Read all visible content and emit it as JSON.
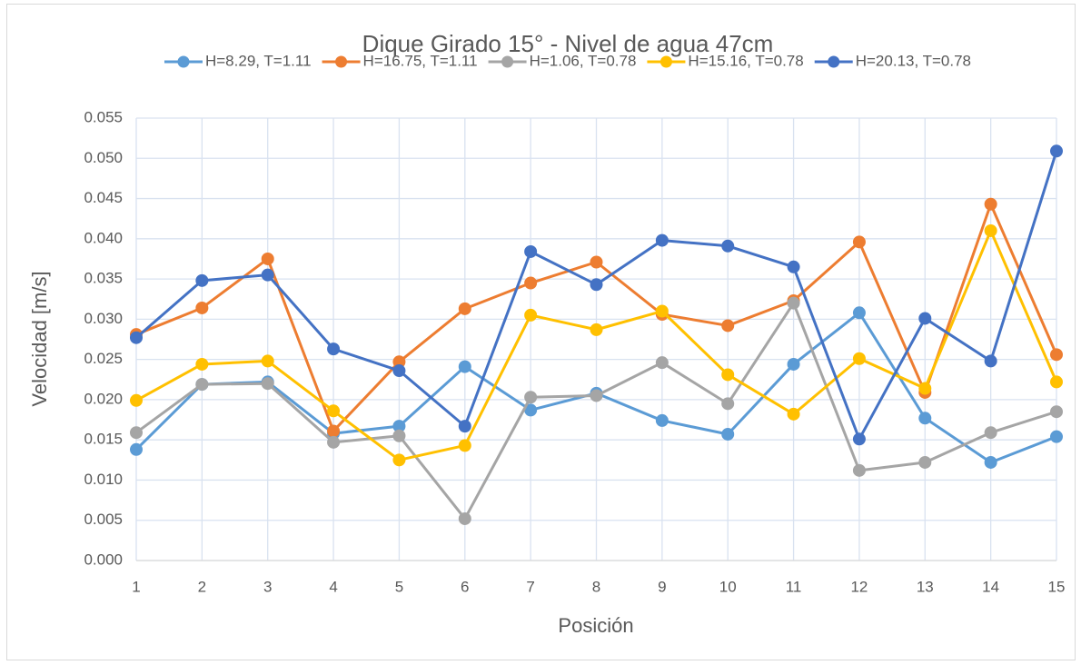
{
  "chart_data": {
    "type": "line",
    "title": "Dique Girado 15° - Nivel de agua 47cm",
    "x_label": "Posición",
    "y_label": "Velocidad [m/s]",
    "categories": [
      "1",
      "2",
      "3",
      "4",
      "5",
      "6",
      "7",
      "8",
      "9",
      "10",
      "11",
      "12",
      "13",
      "14",
      "15"
    ],
    "series": [
      {
        "name": "H=8.29, T=1.11",
        "color": "#5b9bd5",
        "values": [
          0.0138,
          0.0219,
          0.0222,
          0.0158,
          0.0167,
          0.0241,
          0.0187,
          0.0208,
          0.0174,
          0.0157,
          0.0244,
          0.0308,
          0.0177,
          0.0122,
          0.0154
        ]
      },
      {
        "name": "H=16.75, T=1.11",
        "color": "#ed7d31",
        "values": [
          0.0281,
          0.0314,
          0.0375,
          0.0161,
          0.0247,
          0.0313,
          0.0345,
          0.0371,
          0.0306,
          0.0292,
          0.0323,
          0.0396,
          0.0209,
          0.0443,
          0.0256
        ]
      },
      {
        "name": "H=1.06, T=0.78",
        "color": "#a5a5a5",
        "values": [
          0.0159,
          0.0219,
          0.022,
          0.0147,
          0.0155,
          0.0052,
          0.0203,
          0.0205,
          0.0246,
          0.0195,
          0.032,
          0.0112,
          0.0122,
          0.0159,
          0.0185
        ]
      },
      {
        "name": "H=15.16, T=0.78",
        "color": "#ffc000",
        "values": [
          0.0199,
          0.0244,
          0.0248,
          0.0186,
          0.0125,
          0.0143,
          0.0305,
          0.0287,
          0.031,
          0.0231,
          0.0182,
          0.0251,
          0.0214,
          0.041,
          0.0222
        ]
      },
      {
        "name": "H=20.13, T=0.78",
        "color": "#4472c4",
        "values": [
          0.0277,
          0.0348,
          0.0355,
          0.0263,
          0.0236,
          0.0167,
          0.0384,
          0.0343,
          0.0398,
          0.0391,
          0.0365,
          0.0151,
          0.0301,
          0.0248,
          0.0509
        ]
      }
    ],
    "ylim": [
      0,
      0.055
    ],
    "yticks": [
      {
        "value": 0,
        "label": "0.000"
      },
      0.005,
      {
        "value": 0.01,
        "label": "0.010"
      },
      0.015,
      {
        "value": 0.02,
        "label": "0.020"
      },
      0.025,
      {
        "value": 0.03,
        "label": "0.030"
      },
      0.035,
      {
        "value": 0.04,
        "label": "0.040"
      },
      0.045,
      {
        "value": 0.05,
        "label": "0.050"
      },
      0.055
    ],
    "grid": true,
    "legend": "top"
  }
}
